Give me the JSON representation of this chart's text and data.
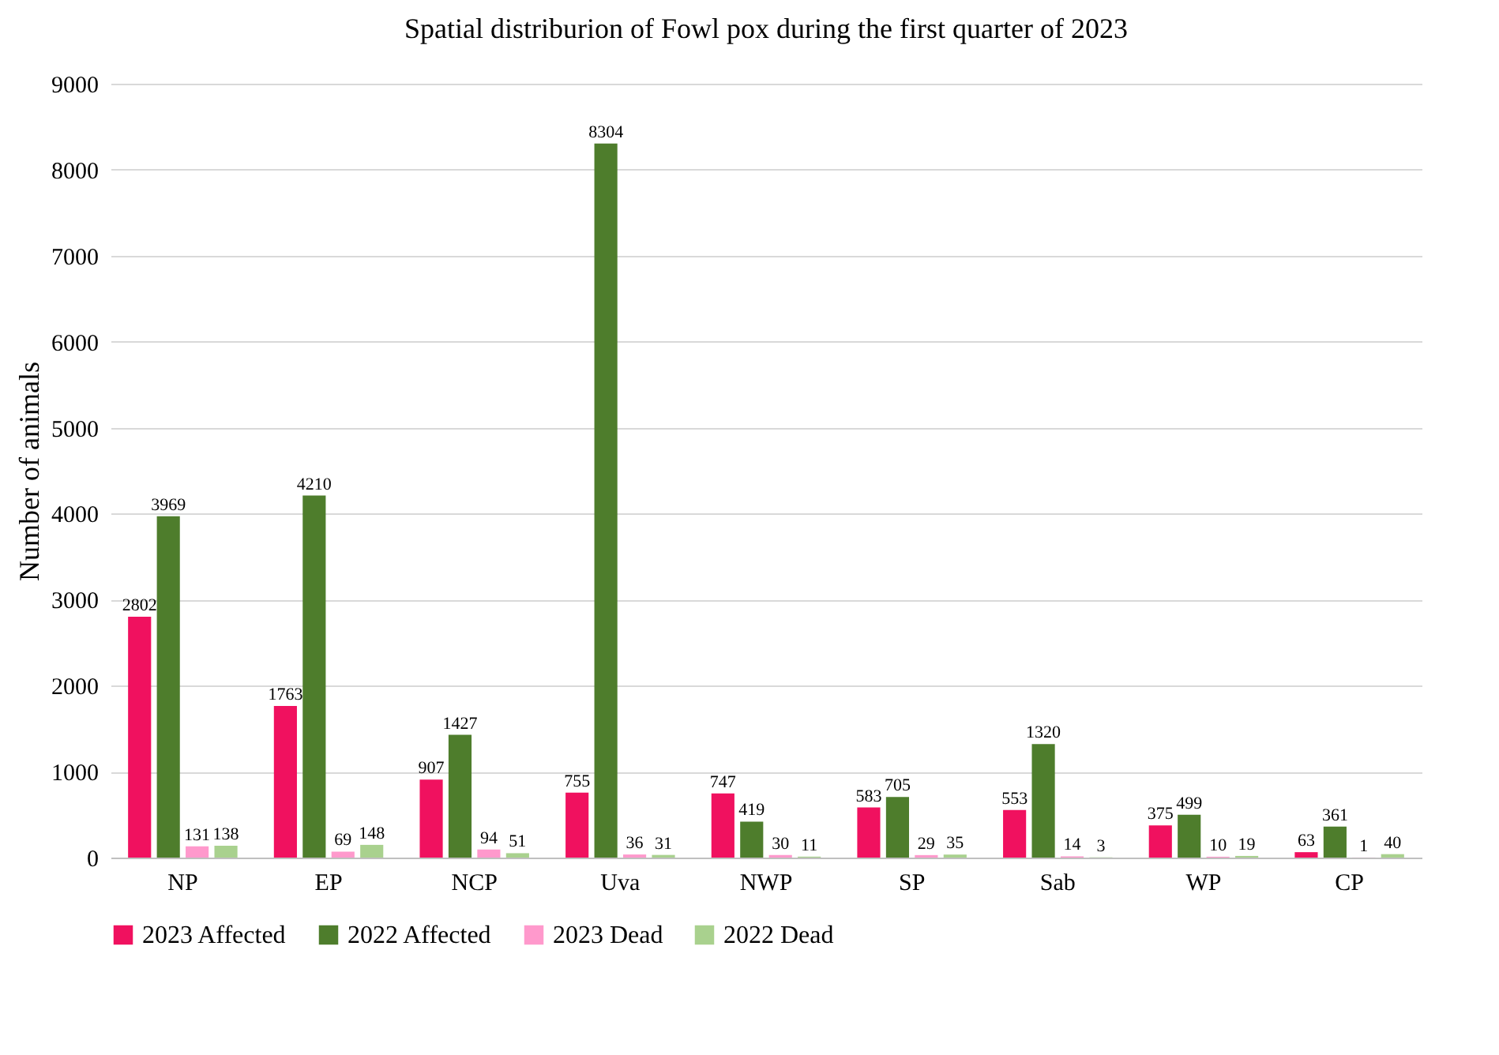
{
  "chart_data": {
    "type": "bar",
    "title": "Spatial distriburion of Fowl pox during the first quarter of 2023",
    "ylabel": "Number of animals",
    "categories": [
      "NP",
      "EP",
      "NCP",
      "Uva",
      "NWP",
      "SP",
      "Sab",
      "WP",
      "CP"
    ],
    "series": [
      {
        "name": "2023 Affected",
        "color": "#f0115f",
        "values": [
          2802,
          1763,
          907,
          755,
          747,
          583,
          553,
          375,
          63
        ]
      },
      {
        "name": "2022 Affected",
        "color": "#4e7d2c",
        "values": [
          3969,
          4210,
          1427,
          8304,
          419,
          705,
          1320,
          499,
          361
        ]
      },
      {
        "name": "2023 Dead",
        "color": "#ff99cc",
        "values": [
          131,
          69,
          94,
          36,
          30,
          29,
          14,
          10,
          1
        ]
      },
      {
        "name": "2022 Dead",
        "color": "#a9d18e",
        "values": [
          138,
          148,
          51,
          31,
          11,
          35,
          3,
          19,
          40
        ]
      }
    ],
    "ylim": [
      0,
      9000
    ],
    "yticks": [
      0,
      1000,
      2000,
      3000,
      4000,
      5000,
      6000,
      7000,
      8000,
      9000
    ],
    "grid": "y",
    "legend": "bottom",
    "data_labels": true
  }
}
